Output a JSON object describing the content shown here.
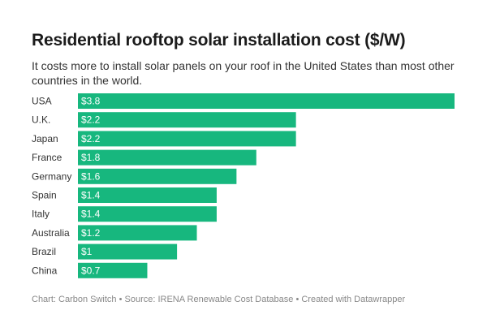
{
  "title": "Residential rooftop solar installation cost ($/W)",
  "subtitle": "It costs more to install solar panels on your roof in the United States than most other countries in the world.",
  "footer": "Chart: Carbon Switch • Source: IRENA Renewable Cost Database • Created with Datawrapper",
  "colors": {
    "bar": "#17b77e"
  },
  "chart_data": {
    "type": "bar",
    "orientation": "horizontal",
    "categories": [
      "USA",
      "U.K.",
      "Japan",
      "France",
      "Germany",
      "Spain",
      "Italy",
      "Australia",
      "Brazil",
      "China"
    ],
    "values": [
      3.8,
      2.2,
      2.2,
      1.8,
      1.6,
      1.4,
      1.4,
      1.2,
      1.0,
      0.7
    ],
    "value_labels": [
      "$3.8",
      "$2.2",
      "$2.2",
      "$1.8",
      "$1.6",
      "$1.4",
      "$1.4",
      "$1.2",
      "$1",
      "$0.7"
    ],
    "title": "Residential rooftop solar installation cost ($/W)",
    "xlim": [
      0,
      3.8
    ],
    "grid": false,
    "legend": "none"
  }
}
